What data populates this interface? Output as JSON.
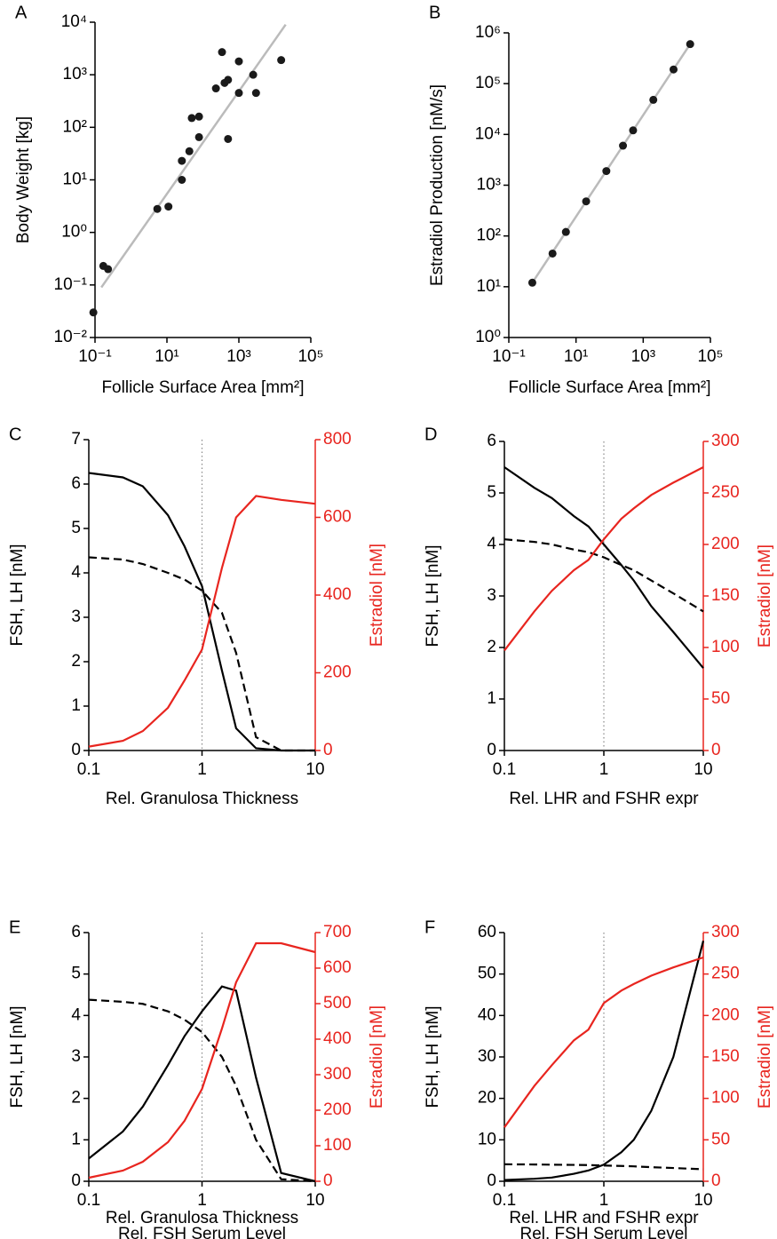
{
  "chart_data": [
    {
      "type": "scatter",
      "label": "A",
      "xscale": "log",
      "yscale": "log",
      "xlabel": [
        "Follicle Surface Area [mm²]"
      ],
      "ylabel": "Body  Weight [kg]",
      "x": [
        0.09,
        0.17,
        0.23,
        5.4,
        11,
        26,
        26,
        42,
        49,
        78,
        78,
        230,
        340,
        400,
        500,
        500,
        1000,
        1000,
        2500,
        3000,
        15000
      ],
      "values": [
        0.03,
        0.23,
        0.2,
        2.8,
        3.1,
        10,
        23,
        35,
        150,
        160,
        65,
        550,
        2700,
        700,
        800,
        60,
        1800,
        450,
        1000,
        450,
        1900
      ],
      "color": "#1a1a1a",
      "fit": {
        "x": [
          0.15,
          20000
        ],
        "values": [
          0.09,
          9000
        ],
        "color": "#bbbbbb"
      },
      "xlim": [
        0.1,
        100000
      ],
      "xticks": [
        {
          "value": 0.1,
          "label": "10⁻¹"
        },
        {
          "value": 10,
          "label": "10¹"
        },
        {
          "value": 1000,
          "label": "10³"
        },
        {
          "value": 100000,
          "label": "10⁵"
        }
      ],
      "ylim": [
        0.01,
        10000
      ],
      "yticks": [
        {
          "value": 0.01,
          "label": "10⁻²"
        },
        {
          "value": 0.1,
          "label": "10⁻¹"
        },
        {
          "value": 1,
          "label": "10⁰"
        },
        {
          "value": 10,
          "label": "10¹"
        },
        {
          "value": 100,
          "label": "10²"
        },
        {
          "value": 1000,
          "label": "10³"
        },
        {
          "value": 10000,
          "label": "10⁴"
        }
      ]
    },
    {
      "type": "scatter",
      "label": "B",
      "xscale": "log",
      "yscale": "log",
      "xlabel": [
        "Follicle Surface Area [mm²]"
      ],
      "ylabel": "Estradiol Production [nM/s]",
      "x": [
        0.5,
        2,
        5,
        20,
        80,
        250,
        500,
        2000,
        8000,
        25000
      ],
      "values": [
        12,
        45,
        120,
        480,
        1900,
        6000,
        12000,
        48000,
        190000,
        600000
      ],
      "color": "#1a1a1a",
      "fit": {
        "x": [
          0.5,
          25000
        ],
        "values": [
          12,
          600000
        ],
        "color": "#bbbbbb"
      },
      "xlim": [
        0.1,
        100000
      ],
      "xticks": [
        {
          "value": 0.1,
          "label": "10⁻¹"
        },
        {
          "value": 10,
          "label": "10¹"
        },
        {
          "value": 1000,
          "label": "10³"
        },
        {
          "value": 100000,
          "label": "10⁵"
        }
      ],
      "ylim": [
        1,
        1000000
      ],
      "yticks": [
        {
          "value": 1,
          "label": "10⁰"
        },
        {
          "value": 10,
          "label": "10¹"
        },
        {
          "value": 100,
          "label": "10²"
        },
        {
          "value": 1000,
          "label": "10³"
        },
        {
          "value": 10000,
          "label": "10⁴"
        },
        {
          "value": 100000,
          "label": "10⁵"
        },
        {
          "value": 1000000,
          "label": "10⁶"
        }
      ]
    },
    {
      "type": "line",
      "label": "C",
      "xscale": "log",
      "xlabel": [
        "Rel. Granulosa Thickness"
      ],
      "ylabel": "FSH, LH [nM]",
      "y2label": "Estradiol [nM]",
      "y2color": "#e8251f",
      "x": [
        0.1,
        0.2,
        0.3,
        0.5,
        0.7,
        1,
        1.5,
        2,
        3,
        5,
        10
      ],
      "series": [
        {
          "color": "#000000",
          "values": [
            6.25,
            6.15,
            5.95,
            5.3,
            4.6,
            3.7,
            1.8,
            0.5,
            0.05,
            0,
            0
          ]
        },
        {
          "color": "#000000",
          "dash": true,
          "values": [
            4.35,
            4.3,
            4.2,
            4.0,
            3.85,
            3.6,
            3.1,
            2.2,
            0.3,
            0,
            0
          ]
        },
        {
          "color": "#e8251f",
          "axis": "y2",
          "values": [
            10,
            25,
            50,
            110,
            180,
            260,
            470,
            600,
            655,
            645,
            635
          ]
        }
      ],
      "vline": 1,
      "xlim": [
        0.1,
        10
      ],
      "xticks": [
        0.1,
        1,
        10
      ],
      "ylim": [
        0,
        7
      ],
      "yticks": [
        0,
        1,
        2,
        3,
        4,
        5,
        6,
        7
      ],
      "y2lim": [
        0,
        800
      ],
      "y2ticks": [
        0,
        200,
        400,
        600,
        800
      ]
    },
    {
      "type": "line",
      "label": "D",
      "xscale": "log",
      "xlabel": [
        "Rel. LHR and FSHR expr"
      ],
      "ylabel": "FSH, LH [nM]",
      "y2label": "Estradiol [nM]",
      "y2color": "#e8251f",
      "x": [
        0.1,
        0.2,
        0.3,
        0.5,
        0.7,
        1,
        1.5,
        2,
        3,
        5,
        10
      ],
      "series": [
        {
          "color": "#000000",
          "values": [
            5.5,
            5.1,
            4.9,
            4.55,
            4.35,
            4.0,
            3.6,
            3.3,
            2.8,
            2.3,
            1.6
          ]
        },
        {
          "color": "#000000",
          "dash": true,
          "values": [
            4.1,
            4.05,
            4.0,
            3.9,
            3.85,
            3.75,
            3.6,
            3.5,
            3.3,
            3.05,
            2.7
          ]
        },
        {
          "color": "#e8251f",
          "axis": "y2",
          "values": [
            97,
            135,
            155,
            175,
            185,
            205,
            225,
            235,
            248,
            260,
            275
          ]
        }
      ],
      "vline": 1,
      "xlim": [
        0.1,
        10
      ],
      "xticks": [
        0.1,
        1,
        10
      ],
      "ylim": [
        0,
        6
      ],
      "yticks": [
        0,
        1,
        2,
        3,
        4,
        5,
        6
      ],
      "y2lim": [
        0,
        300
      ],
      "y2ticks": [
        0,
        50,
        100,
        150,
        200,
        250,
        300
      ]
    },
    {
      "type": "line",
      "label": "E",
      "xscale": "log",
      "xlabel": [
        "Rel. Granulosa Thickness",
        "Rel. FSH Serum Level"
      ],
      "ylabel": "FSH, LH [nM]",
      "y2label": "Estradiol [nM]",
      "y2color": "#e8251f",
      "x": [
        0.1,
        0.2,
        0.3,
        0.5,
        0.7,
        1,
        1.5,
        2,
        3,
        5,
        10
      ],
      "series": [
        {
          "color": "#000000",
          "values": [
            0.55,
            1.2,
            1.8,
            2.8,
            3.5,
            4.1,
            4.7,
            4.6,
            2.5,
            0.2,
            0
          ]
        },
        {
          "color": "#000000",
          "dash": true,
          "values": [
            4.38,
            4.33,
            4.28,
            4.1,
            3.9,
            3.6,
            3.0,
            2.3,
            1.0,
            0.05,
            0
          ]
        },
        {
          "color": "#e8251f",
          "axis": "y2",
          "values": [
            10,
            30,
            55,
            110,
            170,
            260,
            430,
            560,
            670,
            670,
            645
          ]
        }
      ],
      "vline": 1,
      "xlim": [
        0.1,
        10
      ],
      "xticks": [
        0.1,
        1,
        10
      ],
      "ylim": [
        0,
        6
      ],
      "yticks": [
        0,
        1,
        2,
        3,
        4,
        5,
        6
      ],
      "y2lim": [
        0,
        700
      ],
      "y2ticks": [
        0,
        100,
        200,
        300,
        400,
        500,
        600,
        700
      ]
    },
    {
      "type": "line",
      "label": "F",
      "xscale": "log",
      "xlabel": [
        "Rel. LHR and FSHR expr",
        "Rel. FSH Serum Level"
      ],
      "ylabel": "FSH, LH [nM]",
      "y2label": "Estradiol [nM]",
      "y2color": "#e8251f",
      "x": [
        0.1,
        0.2,
        0.3,
        0.5,
        0.7,
        1,
        1.5,
        2,
        3,
        5,
        10
      ],
      "series": [
        {
          "color": "#000000",
          "values": [
            0.3,
            0.6,
            0.9,
            1.8,
            2.6,
            4,
            7,
            10,
            17,
            30,
            58
          ]
        },
        {
          "color": "#000000",
          "dash": true,
          "values": [
            4.1,
            4.05,
            4.0,
            3.95,
            3.9,
            3.8,
            3.7,
            3.6,
            3.4,
            3.2,
            2.9
          ]
        },
        {
          "color": "#e8251f",
          "axis": "y2",
          "values": [
            65,
            115,
            140,
            170,
            183,
            215,
            230,
            238,
            248,
            258,
            270
          ]
        }
      ],
      "vline": 1,
      "xlim": [
        0.1,
        10
      ],
      "xticks": [
        0.1,
        1,
        10
      ],
      "ylim": [
        0,
        60
      ],
      "yticks": [
        0,
        10,
        20,
        30,
        40,
        50,
        60
      ],
      "y2lim": [
        0,
        300
      ],
      "y2ticks": [
        0,
        50,
        100,
        150,
        200,
        250,
        300
      ]
    }
  ]
}
